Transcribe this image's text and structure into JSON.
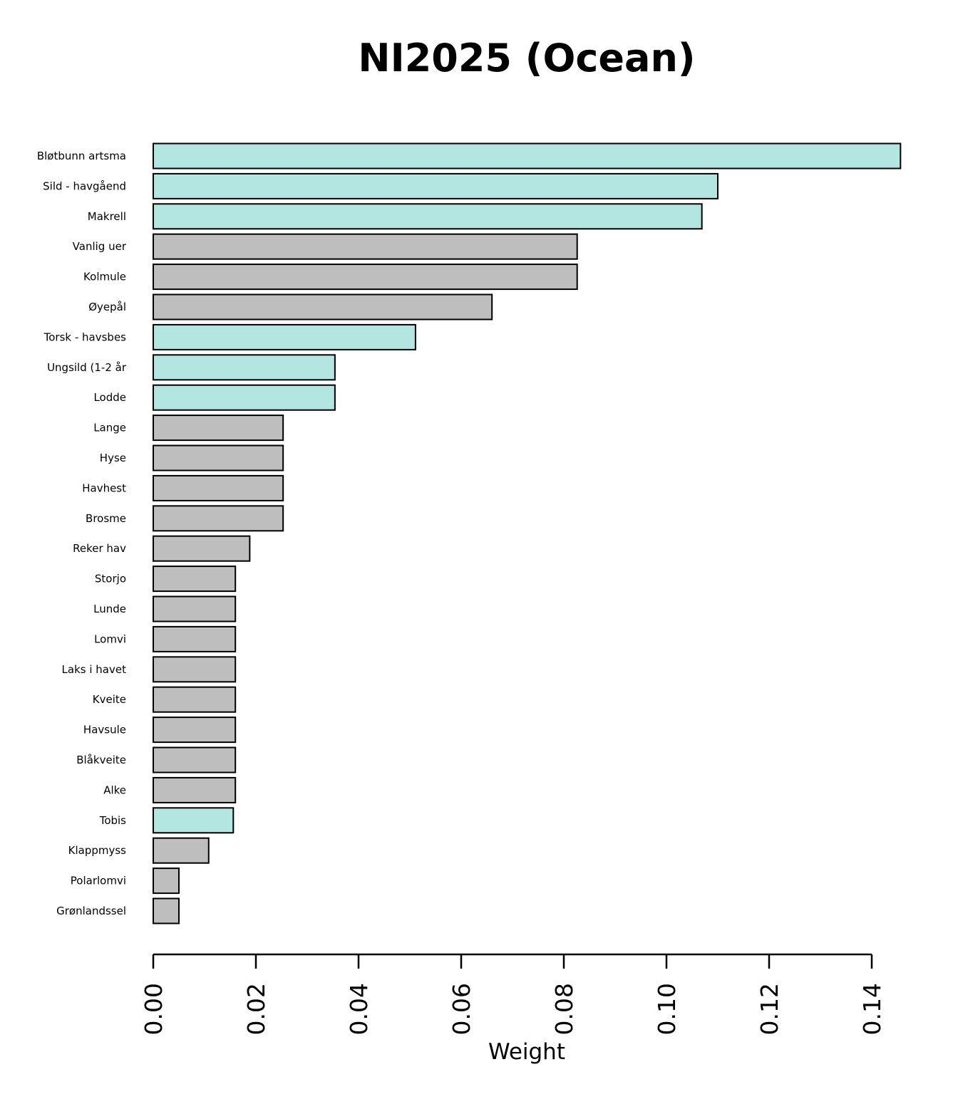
{
  "chart_data": {
    "type": "bar",
    "orientation": "horizontal",
    "title": "NI2025 (Ocean)",
    "xlabel": "Weight",
    "ylabel": "",
    "xlim": [
      0,
      0.14
    ],
    "xticks": [
      "0.00",
      "0.02",
      "0.04",
      "0.06",
      "0.08",
      "0.10",
      "0.12",
      "0.14"
    ],
    "grid": false,
    "colors": {
      "highlight": "#b3e5e1",
      "default": "#bebebe",
      "edge": "#000000"
    },
    "categories": [
      "Bløtbunn artsma",
      "Sild - havgåend",
      "Makrell",
      "Vanlig uer",
      "Kolmule",
      "Øyepål",
      "Torsk - havsbes",
      "Ungsild (1-2 år",
      "Lodde",
      "Lange",
      "Hyse",
      "Havhest",
      "Brosme",
      "Reker hav",
      "Storjo",
      "Lunde",
      "Lomvi",
      "Laks i havet",
      "Kveite",
      "Havsule",
      "Blåkveite",
      "Alke",
      "Tobis",
      "Klappmyss",
      "Polarlomvi",
      "Grønlandssel"
    ],
    "values": [
      0.1456,
      0.11,
      0.1069,
      0.0826,
      0.0826,
      0.066,
      0.0511,
      0.0354,
      0.0354,
      0.0253,
      0.0253,
      0.0253,
      0.0253,
      0.0188,
      0.016,
      0.016,
      0.016,
      0.016,
      0.016,
      0.016,
      0.016,
      0.016,
      0.0156,
      0.0108,
      0.005,
      0.005
    ],
    "highlighted": [
      true,
      true,
      true,
      false,
      false,
      false,
      true,
      true,
      true,
      false,
      false,
      false,
      false,
      false,
      false,
      false,
      false,
      false,
      false,
      false,
      false,
      false,
      true,
      false,
      false,
      false
    ]
  }
}
